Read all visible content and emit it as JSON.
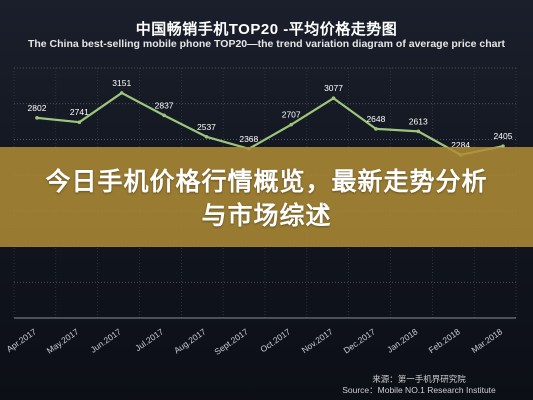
{
  "chart_data": {
    "type": "line",
    "title": "中国畅销手机TOP20 -平均价格走势图",
    "subtitle": "The China best-selling mobile phone TOP20—the trend variation diagram of average price chart",
    "categories": [
      "Apr.2017",
      "May.2017",
      "Jun.2017",
      "Jul.2017",
      "Aug.2017",
      "Sept.2017",
      "Oct.2017",
      "Nov.2017",
      "Dec.2017",
      "Jan.2018",
      "Feb.2018",
      "Mar.2018"
    ],
    "series": [
      {
        "values": [
          2802,
          2741,
          3151,
          2837,
          2537,
          2368,
          2707,
          3077,
          2648,
          2613,
          2284,
          2405
        ]
      }
    ],
    "ylim": [
      0,
      3500
    ],
    "grid": true,
    "legend": "none",
    "line_color": "#9ec57c"
  },
  "banner": {
    "text": "今日手机价格行情概览，最新走势分析与市场综述"
  },
  "source": {
    "line1": "来源：第一手机界研究院",
    "line2": "Source：Mobile NO.1 Research Institute"
  }
}
